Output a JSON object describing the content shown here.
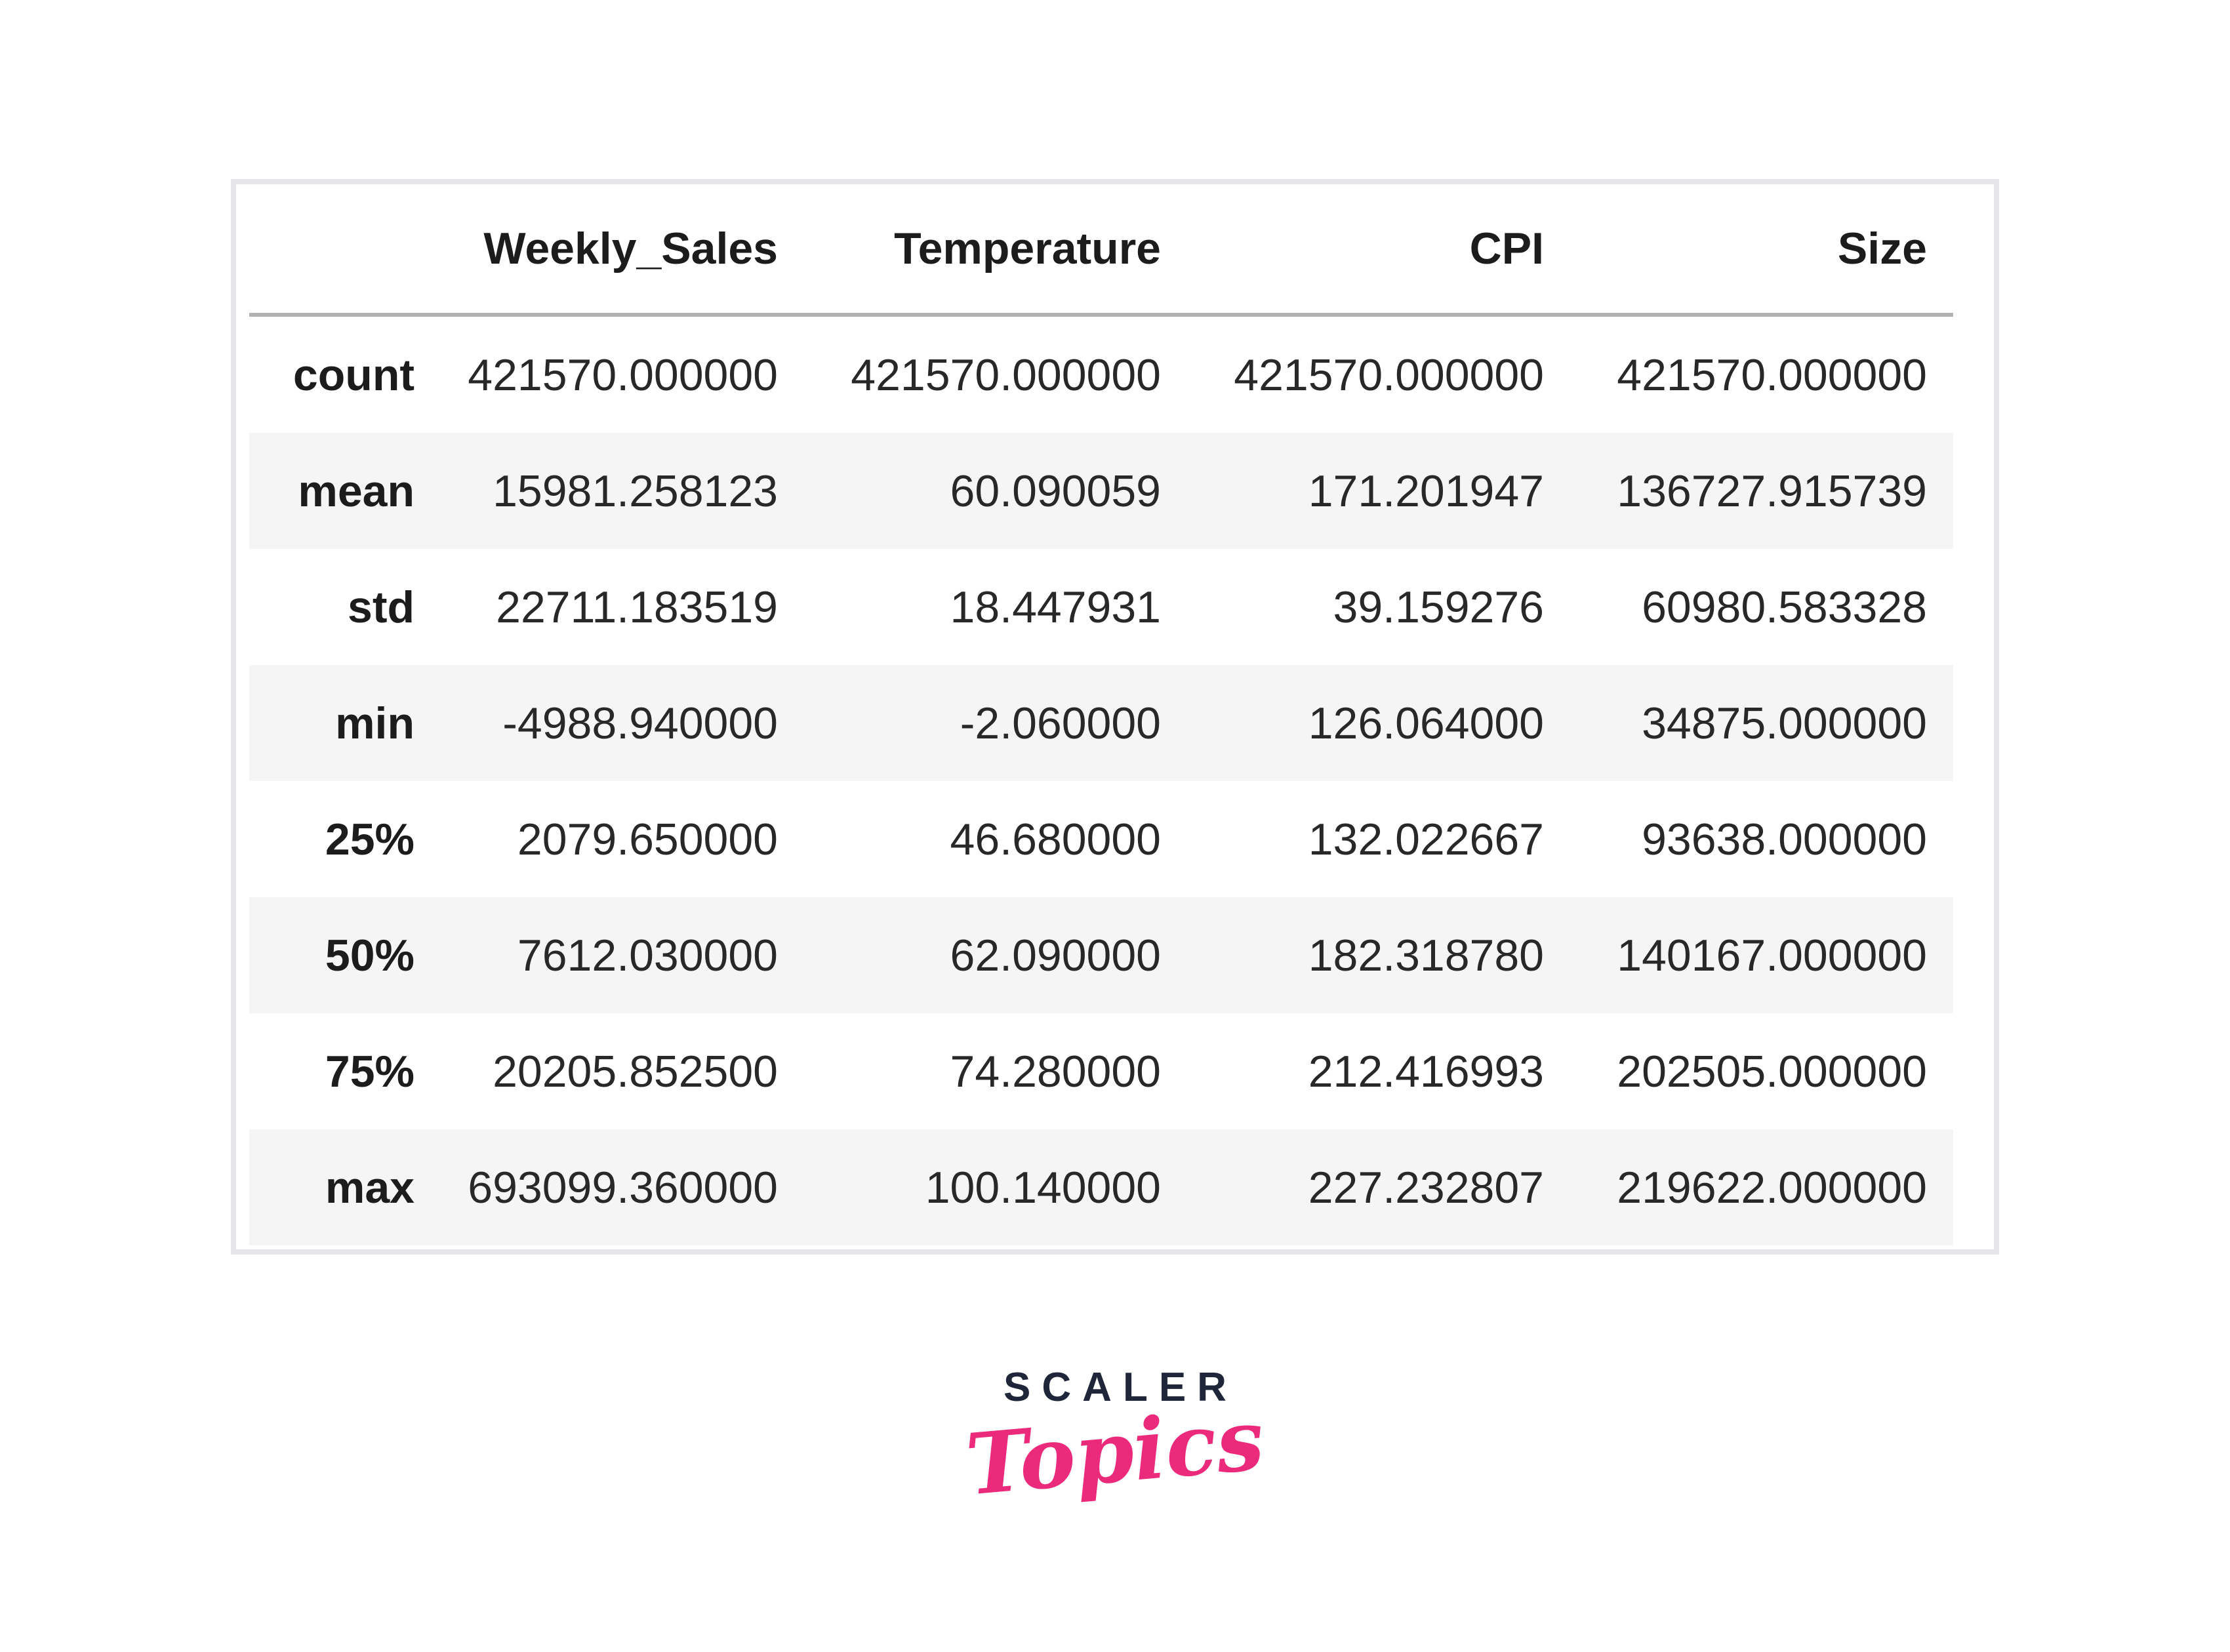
{
  "table": {
    "index_header": "",
    "columns": [
      "Weekly_Sales",
      "Temperature",
      "CPI",
      "Size"
    ],
    "rows": [
      {
        "label": "count",
        "values": [
          "421570.000000",
          "421570.000000",
          "421570.000000",
          "421570.000000"
        ]
      },
      {
        "label": "mean",
        "values": [
          "15981.258123",
          "60.090059",
          "171.201947",
          "136727.915739"
        ]
      },
      {
        "label": "std",
        "values": [
          "22711.183519",
          "18.447931",
          "39.159276",
          "60980.583328"
        ]
      },
      {
        "label": "min",
        "values": [
          "-4988.940000",
          "-2.060000",
          "126.064000",
          "34875.000000"
        ]
      },
      {
        "label": "25%",
        "values": [
          "2079.650000",
          "46.680000",
          "132.022667",
          "93638.000000"
        ]
      },
      {
        "label": "50%",
        "values": [
          "7612.030000",
          "62.090000",
          "182.318780",
          "140167.000000"
        ]
      },
      {
        "label": "75%",
        "values": [
          "20205.852500",
          "74.280000",
          "212.416993",
          "202505.000000"
        ]
      },
      {
        "label": "max",
        "values": [
          "693099.360000",
          "100.140000",
          "227.232807",
          "219622.000000"
        ]
      }
    ]
  },
  "chart_data": {
    "type": "table",
    "title": "DataFrame describe() summary statistics",
    "columns": [
      "Weekly_Sales",
      "Temperature",
      "CPI",
      "Size"
    ],
    "index": [
      "count",
      "mean",
      "std",
      "min",
      "25%",
      "50%",
      "75%",
      "max"
    ],
    "values": [
      [
        421570.0,
        421570.0,
        421570.0,
        421570.0
      ],
      [
        15981.258123,
        60.090059,
        171.201947,
        136727.915739
      ],
      [
        22711.183519,
        18.447931,
        39.159276,
        60980.583328
      ],
      [
        -4988.94,
        -2.06,
        126.064,
        34875.0
      ],
      [
        2079.65,
        46.68,
        132.022667,
        93638.0
      ],
      [
        7612.03,
        62.09,
        182.31878,
        140167.0
      ],
      [
        20205.8525,
        74.28,
        212.416993,
        202505.0
      ],
      [
        693099.36,
        100.14,
        227.232807,
        219622.0
      ]
    ]
  },
  "logo": {
    "brand": "SCALER",
    "sub": "Topics",
    "brand_color": "#1f2639",
    "accent_color": "#ec2a7b"
  },
  "colors": {
    "panel_border": "#e6e6e9",
    "header_rule": "#b2b2b2",
    "row_stripe": "#f5f5f6",
    "text": "#282828"
  }
}
